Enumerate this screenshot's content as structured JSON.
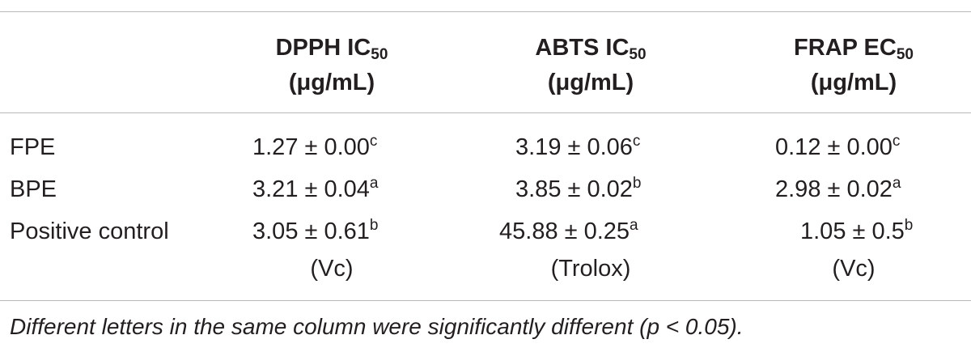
{
  "table": {
    "headers": [
      {
        "line1_main": "DPPH IC",
        "line1_sub": "50",
        "line2": "(μg/mL)"
      },
      {
        "line1_main": "ABTS IC",
        "line1_sub": "50",
        "line2": "(μg/mL)"
      },
      {
        "line1_main": "FRAP EC",
        "line1_sub": "50",
        "line2": "(μg/mL)"
      }
    ],
    "rows": [
      {
        "label": "FPE",
        "cells": [
          {
            "value": "1.27 ± 0.00",
            "sup": "c"
          },
          {
            "value": "3.19 ± 0.06",
            "sup": "c"
          },
          {
            "value": "0.12 ± 0.00",
            "sup": "c"
          }
        ]
      },
      {
        "label": "BPE",
        "cells": [
          {
            "value": "3.21 ± 0.04",
            "sup": "a"
          },
          {
            "value": "3.85 ± 0.02",
            "sup": "b"
          },
          {
            "value": "2.98 ± 0.02",
            "sup": "a"
          }
        ]
      },
      {
        "label": "Positive control",
        "cells": [
          {
            "value": "3.05 ± 0.61",
            "sup": "b",
            "note": "(Vc)"
          },
          {
            "value": "45.88 ± 0.25",
            "sup": "a",
            "note": "(Trolox)"
          },
          {
            "value": "1.05 ± 0.5",
            "sup": "b",
            "note": "(Vc)"
          }
        ]
      }
    ]
  },
  "footnote": "Different letters in the same column were significantly different (p < 0.05)."
}
